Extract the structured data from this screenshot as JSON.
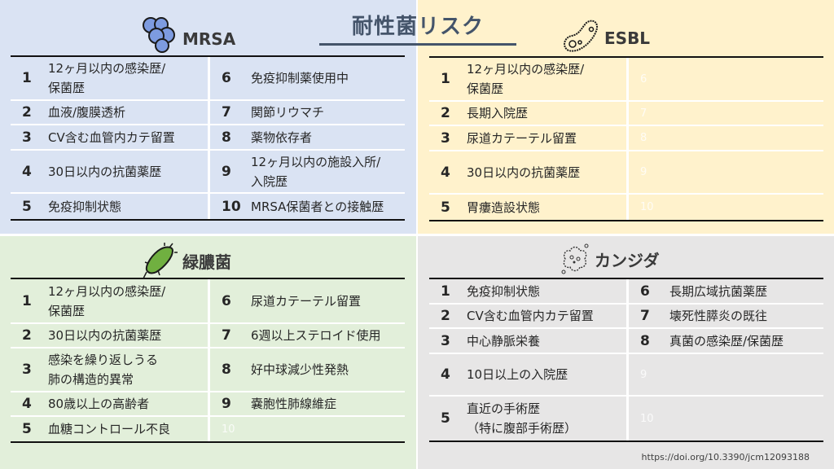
{
  "title": "耐性菌リスク",
  "source_url": "https://doi.org/10.3390/jcm12093188",
  "colors": {
    "mrsa_bg": "#dae3f3",
    "esbl_bg": "#fff2cc",
    "pseudomonas_bg": "#e2efda",
    "candida_bg": "#e7e6e6",
    "title": "#44546a"
  },
  "sections": [
    {
      "id": "mrsa",
      "name": "MRSA",
      "icon": "staphylococcus-cluster-icon",
      "rows_left": [
        [
          "1",
          "12ヶ月以内の感染歴/\n保菌歴"
        ],
        [
          "2",
          "血液/腹膜透析"
        ],
        [
          "3",
          "CV含む血管内カテ留置"
        ],
        [
          "4",
          "30日以内の抗菌薬歴"
        ],
        [
          "5",
          "免疫抑制状態"
        ]
      ],
      "rows_right": [
        [
          "6",
          "免疫抑制薬使用中"
        ],
        [
          "7",
          "関節リウマチ"
        ],
        [
          "8",
          "薬物依存者"
        ],
        [
          "9",
          "12ヶ月以内の施設入所/\n入院歴"
        ],
        [
          "10",
          "MRSA保菌者との接触歴"
        ]
      ]
    },
    {
      "id": "esbl",
      "name": "ESBL",
      "icon": "bacterium-outline-icon",
      "rows_left": [
        [
          "1",
          "12ヶ月以内の感染歴/\n保菌歴"
        ],
        [
          "2",
          "長期入院歴"
        ],
        [
          "3",
          "尿道カテーテル留置"
        ],
        [
          "4",
          "30日以内の抗菌薬歴"
        ],
        [
          "5",
          "胃瘻造設状態"
        ]
      ],
      "rows_right": [
        [
          "6",
          ""
        ],
        [
          "7",
          ""
        ],
        [
          "8",
          ""
        ],
        [
          "9",
          ""
        ],
        [
          "10",
          ""
        ]
      ]
    },
    {
      "id": "pseudomonas",
      "name": "緑膿菌",
      "icon": "rod-bacterium-icon",
      "rows_left": [
        [
          "1",
          "12ヶ月以内の感染歴/\n保菌歴"
        ],
        [
          "2",
          "30日以内の抗菌薬歴"
        ],
        [
          "3",
          "感染を繰り返しうる\n肺の構造的異常"
        ],
        [
          "4",
          "80歳以上の高齢者"
        ],
        [
          "5",
          "血糖コントロール不良"
        ]
      ],
      "rows_right": [
        [
          "6",
          "尿道カテーテル留置"
        ],
        [
          "7",
          "6週以上ステロイド使用"
        ],
        [
          "8",
          "好中球減少性発熱"
        ],
        [
          "9",
          "嚢胞性肺線維症"
        ],
        [
          "10",
          ""
        ]
      ]
    },
    {
      "id": "candida",
      "name": "カンジダ",
      "icon": "fungus-icon",
      "rows_left": [
        [
          "1",
          "免疫抑制状態"
        ],
        [
          "2",
          "CV含む血管内カテ留置"
        ],
        [
          "3",
          "中心静脈栄養"
        ],
        [
          "4",
          "10日以上の入院歴"
        ],
        [
          "5",
          "直近の手術歴\n（特に腹部手術歴）"
        ]
      ],
      "rows_right": [
        [
          "6",
          "長期広域抗菌薬歴"
        ],
        [
          "7",
          "壊死性膵炎の既往"
        ],
        [
          "8",
          "真菌の感染歴/保菌歴"
        ],
        [
          "9",
          ""
        ],
        [
          "10",
          ""
        ]
      ]
    }
  ]
}
